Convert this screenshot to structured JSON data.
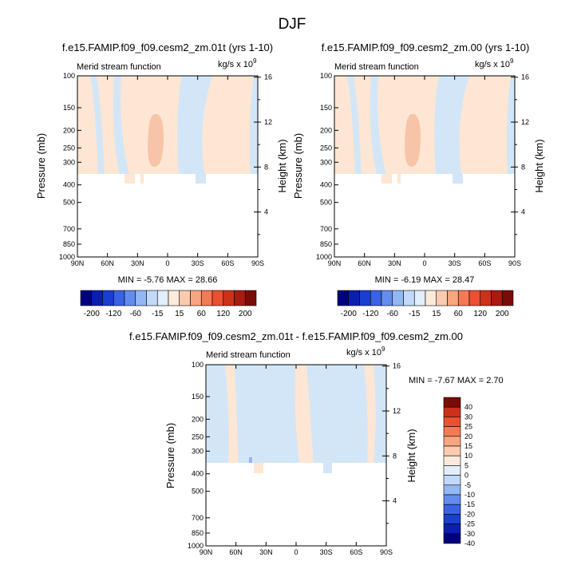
{
  "figure_title": "DJF",
  "colors": {
    "neg1": "#d2e6f8",
    "pos1": "#fde6d3",
    "pos2": "#f8c4a8",
    "scale_main": [
      "#00007f",
      "#0a1fae",
      "#1a3ed0",
      "#3a62e4",
      "#628ded",
      "#93b7f4",
      "#c2d9f9",
      "#e1eefc",
      "#fdeadb",
      "#fbcbaf",
      "#f8a581",
      "#f47a55",
      "#e95130",
      "#cc3119",
      "#a71b10",
      "#7a0c08"
    ],
    "scale_diff": [
      "#00007f",
      "#0a1fae",
      "#1a3ed0",
      "#3a62e4",
      "#628ded",
      "#93b7f4",
      "#c2d9f9",
      "#e1eefc",
      "#fdeadb",
      "#fbcbaf",
      "#f8a581",
      "#f47a55",
      "#e95130",
      "#cc3119",
      "#7a0c08"
    ]
  },
  "panels": [
    {
      "title": "f.e15.FAMIP.f09_f09.cesm2_zm.01t (yrs 1-10)",
      "left_label": "Merid stream function",
      "units_base": "kg/s x 10",
      "units_exp": "9",
      "stats": "MIN =  -5.76  MAX =  28.66",
      "ylabel": "Pressure (mb)",
      "y2label": "Height (km)"
    },
    {
      "title": "f.e15.FAMIP.f09_f09.cesm2_zm.00 (yrs 1-10)",
      "left_label": "Merid stream function",
      "units_base": "kg/s x 10",
      "units_exp": "9",
      "stats": "MIN =  -6.19  MAX =  28.47",
      "ylabel": "Pressure (mb)",
      "y2label": "Height (km)"
    },
    {
      "title": "f.e15.FAMIP.f09_f09.cesm2_zm.01t - f.e15.FAMIP.f09_f09.cesm2_zm.00",
      "left_label": "Merid stream function",
      "units_base": "kg/s x 10",
      "units_exp": "9",
      "stats": "MIN =  -7.67  MAX =   2.70",
      "ylabel": "Pressure (mb)",
      "y2label": "Height (km)"
    }
  ],
  "chart_data": [
    {
      "type": "contour",
      "title": "f.e15.FAMIP.f09_f09.cesm2_zm.01t (yrs 1-10)",
      "xlabel": "",
      "ylabel": "Pressure (mb)",
      "y2label": "Height (km)",
      "x_ticks": [
        "90N",
        "60N",
        "30N",
        "0",
        "30S",
        "60S",
        "90S"
      ],
      "y_ticks": [
        "100",
        "150",
        "200",
        "250",
        "300",
        "400",
        "500",
        "700",
        "850",
        "1000"
      ],
      "y2_ticks": [
        "16",
        "12",
        "8",
        "4"
      ],
      "ylim": [
        1000,
        100
      ],
      "xlim": [
        90,
        -90
      ],
      "min": -5.76,
      "max": 28.66
    },
    {
      "type": "contour",
      "title": "f.e15.FAMIP.f09_f09.cesm2_zm.00 (yrs 1-10)",
      "xlabel": "",
      "ylabel": "Pressure (mb)",
      "y2label": "Height (km)",
      "x_ticks": [
        "90N",
        "60N",
        "30N",
        "0",
        "30S",
        "60S",
        "90S"
      ],
      "y_ticks": [
        "100",
        "150",
        "200",
        "250",
        "300",
        "400",
        "500",
        "700",
        "850",
        "1000"
      ],
      "y2_ticks": [
        "16",
        "12",
        "8",
        "4"
      ],
      "ylim": [
        1000,
        100
      ],
      "xlim": [
        90,
        -90
      ],
      "min": -6.19,
      "max": 28.47
    },
    {
      "type": "contour",
      "title": "f.e15.FAMIP.f09_f09.cesm2_zm.01t - f.e15.FAMIP.f09_f09.cesm2_zm.00",
      "xlabel": "",
      "ylabel": "Pressure (mb)",
      "y2label": "Height (km)",
      "x_ticks": [
        "90N",
        "60N",
        "30N",
        "0",
        "30S",
        "60S",
        "90S"
      ],
      "y_ticks": [
        "100",
        "150",
        "200",
        "250",
        "300",
        "400",
        "500",
        "700",
        "850",
        "1000"
      ],
      "y2_ticks": [
        "16",
        "12",
        "8",
        "4"
      ],
      "ylim": [
        1000,
        100
      ],
      "xlim": [
        90,
        -90
      ],
      "min": -7.67,
      "max": 2.7
    }
  ],
  "colorbar_main_labels": [
    "-200",
    "-120",
    "-60",
    "-15",
    "15",
    "60",
    "120",
    "200"
  ],
  "colorbar_diff_labels": [
    "40",
    "30",
    "25",
    "20",
    "15",
    "10",
    "5",
    "0",
    "-5",
    "-10",
    "-15",
    "-20",
    "-25",
    "-30",
    "-40"
  ]
}
